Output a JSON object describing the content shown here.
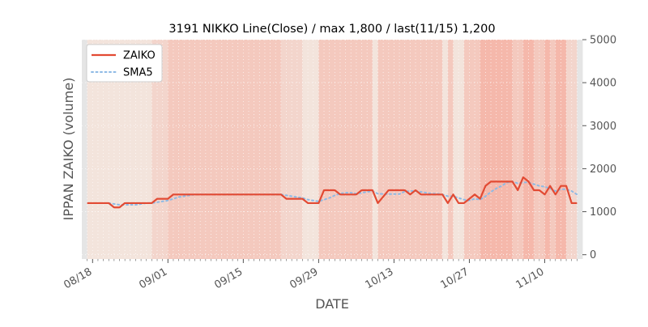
{
  "chart_data": {
    "type": "line",
    "title": "3191 NIKKO Line(Close) / max 1,800 / last(11/15) 1,200",
    "xlabel": "DATE",
    "ylabel": "IPPAN ZAIKO (volume)",
    "ylim": [
      -100,
      5000
    ],
    "yticks": [
      0,
      1000,
      2000,
      3000,
      4000,
      5000
    ],
    "ytick_labels": [
      "0",
      "1000",
      "2000",
      "3000",
      "4000",
      "5000"
    ],
    "y_axis_side": "right",
    "x_range": [
      "2023-08-16",
      "2023-11-17"
    ],
    "xticks": [
      {
        "date": "2023-08-18",
        "label": "08/18"
      },
      {
        "date": "2023-09-01",
        "label": "09/01"
      },
      {
        "date": "2023-09-15",
        "label": "09/15"
      },
      {
        "date": "2023-09-29",
        "label": "09/29"
      },
      {
        "date": "2023-10-13",
        "label": "10/13"
      },
      {
        "date": "2023-10-27",
        "label": "10/27"
      },
      {
        "date": "2023-11-10",
        "label": "11/10"
      }
    ],
    "legend_position": "top-left",
    "grid": true,
    "series": [
      {
        "name": "ZAIKO",
        "style": "solid",
        "color": "#E24A33",
        "points": [
          [
            "2023-08-17",
            1200
          ],
          [
            "2023-08-18",
            1200
          ],
          [
            "2023-08-19",
            1200
          ],
          [
            "2023-08-20",
            1200
          ],
          [
            "2023-08-21",
            1200
          ],
          [
            "2023-08-22",
            1100
          ],
          [
            "2023-08-23",
            1100
          ],
          [
            "2023-08-24",
            1200
          ],
          [
            "2023-08-25",
            1200
          ],
          [
            "2023-08-26",
            1200
          ],
          [
            "2023-08-27",
            1200
          ],
          [
            "2023-08-28",
            1200
          ],
          [
            "2023-08-29",
            1200
          ],
          [
            "2023-08-30",
            1300
          ],
          [
            "2023-08-31",
            1300
          ],
          [
            "2023-09-01",
            1300
          ],
          [
            "2023-09-02",
            1400
          ],
          [
            "2023-09-03",
            1400
          ],
          [
            "2023-09-04",
            1400
          ],
          [
            "2023-09-05",
            1400
          ],
          [
            "2023-09-06",
            1400
          ],
          [
            "2023-09-07",
            1400
          ],
          [
            "2023-09-08",
            1400
          ],
          [
            "2023-09-09",
            1400
          ],
          [
            "2023-09-10",
            1400
          ],
          [
            "2023-09-11",
            1400
          ],
          [
            "2023-09-12",
            1400
          ],
          [
            "2023-09-13",
            1400
          ],
          [
            "2023-09-14",
            1400
          ],
          [
            "2023-09-15",
            1400
          ],
          [
            "2023-09-16",
            1400
          ],
          [
            "2023-09-17",
            1400
          ],
          [
            "2023-09-18",
            1400
          ],
          [
            "2023-09-19",
            1400
          ],
          [
            "2023-09-20",
            1400
          ],
          [
            "2023-09-21",
            1400
          ],
          [
            "2023-09-22",
            1400
          ],
          [
            "2023-09-23",
            1300
          ],
          [
            "2023-09-24",
            1300
          ],
          [
            "2023-09-25",
            1300
          ],
          [
            "2023-09-26",
            1300
          ],
          [
            "2023-09-27",
            1200
          ],
          [
            "2023-09-28",
            1200
          ],
          [
            "2023-09-29",
            1200
          ],
          [
            "2023-09-30",
            1500
          ],
          [
            "2023-10-01",
            1500
          ],
          [
            "2023-10-02",
            1500
          ],
          [
            "2023-10-03",
            1400
          ],
          [
            "2023-10-04",
            1400
          ],
          [
            "2023-10-05",
            1400
          ],
          [
            "2023-10-06",
            1400
          ],
          [
            "2023-10-07",
            1500
          ],
          [
            "2023-10-08",
            1500
          ],
          [
            "2023-10-09",
            1500
          ],
          [
            "2023-10-10",
            1200
          ],
          [
            "2023-10-11",
            1350
          ],
          [
            "2023-10-12",
            1500
          ],
          [
            "2023-10-13",
            1500
          ],
          [
            "2023-10-14",
            1500
          ],
          [
            "2023-10-15",
            1500
          ],
          [
            "2023-10-16",
            1400
          ],
          [
            "2023-10-17",
            1500
          ],
          [
            "2023-10-18",
            1400
          ],
          [
            "2023-10-19",
            1400
          ],
          [
            "2023-10-20",
            1400
          ],
          [
            "2023-10-21",
            1400
          ],
          [
            "2023-10-22",
            1400
          ],
          [
            "2023-10-23",
            1200
          ],
          [
            "2023-10-24",
            1400
          ],
          [
            "2023-10-25",
            1200
          ],
          [
            "2023-10-26",
            1200
          ],
          [
            "2023-10-27",
            1300
          ],
          [
            "2023-10-28",
            1400
          ],
          [
            "2023-10-29",
            1300
          ],
          [
            "2023-10-30",
            1600
          ],
          [
            "2023-10-31",
            1700
          ],
          [
            "2023-11-01",
            1700
          ],
          [
            "2023-11-02",
            1700
          ],
          [
            "2023-11-03",
            1700
          ],
          [
            "2023-11-04",
            1700
          ],
          [
            "2023-11-05",
            1500
          ],
          [
            "2023-11-06",
            1800
          ],
          [
            "2023-11-07",
            1700
          ],
          [
            "2023-11-08",
            1500
          ],
          [
            "2023-11-09",
            1500
          ],
          [
            "2023-11-10",
            1400
          ],
          [
            "2023-11-11",
            1600
          ],
          [
            "2023-11-12",
            1400
          ],
          [
            "2023-11-13",
            1600
          ],
          [
            "2023-11-14",
            1600
          ],
          [
            "2023-11-15",
            1200
          ],
          [
            "2023-11-16",
            1200
          ]
        ]
      },
      {
        "name": "SMA5",
        "style": "dotted",
        "color": "#8EBAE5",
        "points": [
          [
            "2023-08-21",
            1200
          ],
          [
            "2023-08-22",
            1180
          ],
          [
            "2023-08-23",
            1160
          ],
          [
            "2023-08-24",
            1160
          ],
          [
            "2023-08-25",
            1160
          ],
          [
            "2023-08-26",
            1160
          ],
          [
            "2023-08-27",
            1180
          ],
          [
            "2023-08-28",
            1200
          ],
          [
            "2023-08-29",
            1200
          ],
          [
            "2023-08-30",
            1220
          ],
          [
            "2023-08-31",
            1240
          ],
          [
            "2023-09-01",
            1260
          ],
          [
            "2023-09-02",
            1300
          ],
          [
            "2023-09-03",
            1340
          ],
          [
            "2023-09-04",
            1360
          ],
          [
            "2023-09-05",
            1380
          ],
          [
            "2023-09-06",
            1400
          ],
          [
            "2023-09-07",
            1400
          ],
          [
            "2023-09-08",
            1400
          ],
          [
            "2023-09-09",
            1400
          ],
          [
            "2023-09-10",
            1400
          ],
          [
            "2023-09-11",
            1400
          ],
          [
            "2023-09-12",
            1400
          ],
          [
            "2023-09-13",
            1400
          ],
          [
            "2023-09-14",
            1400
          ],
          [
            "2023-09-15",
            1400
          ],
          [
            "2023-09-16",
            1400
          ],
          [
            "2023-09-17",
            1400
          ],
          [
            "2023-09-18",
            1400
          ],
          [
            "2023-09-19",
            1400
          ],
          [
            "2023-09-20",
            1400
          ],
          [
            "2023-09-21",
            1400
          ],
          [
            "2023-09-22",
            1400
          ],
          [
            "2023-09-23",
            1380
          ],
          [
            "2023-09-24",
            1360
          ],
          [
            "2023-09-25",
            1340
          ],
          [
            "2023-09-26",
            1320
          ],
          [
            "2023-09-27",
            1280
          ],
          [
            "2023-09-28",
            1260
          ],
          [
            "2023-09-29",
            1240
          ],
          [
            "2023-09-30",
            1280
          ],
          [
            "2023-10-01",
            1320
          ],
          [
            "2023-10-02",
            1380
          ],
          [
            "2023-10-03",
            1420
          ],
          [
            "2023-10-04",
            1440
          ],
          [
            "2023-10-05",
            1440
          ],
          [
            "2023-10-06",
            1420
          ],
          [
            "2023-10-07",
            1440
          ],
          [
            "2023-10-08",
            1460
          ],
          [
            "2023-10-09",
            1480
          ],
          [
            "2023-10-10",
            1420
          ],
          [
            "2023-10-11",
            1410
          ],
          [
            "2023-10-12",
            1410
          ],
          [
            "2023-10-13",
            1410
          ],
          [
            "2023-10-14",
            1410
          ],
          [
            "2023-10-15",
            1470
          ],
          [
            "2023-10-16",
            1480
          ],
          [
            "2023-10-17",
            1480
          ],
          [
            "2023-10-18",
            1460
          ],
          [
            "2023-10-19",
            1440
          ],
          [
            "2023-10-20",
            1420
          ],
          [
            "2023-10-21",
            1420
          ],
          [
            "2023-10-22",
            1400
          ],
          [
            "2023-10-23",
            1360
          ],
          [
            "2023-10-24",
            1360
          ],
          [
            "2023-10-25",
            1320
          ],
          [
            "2023-10-26",
            1280
          ],
          [
            "2023-10-27",
            1260
          ],
          [
            "2023-10-28",
            1300
          ],
          [
            "2023-10-29",
            1280
          ],
          [
            "2023-10-30",
            1360
          ],
          [
            "2023-10-31",
            1460
          ],
          [
            "2023-11-01",
            1540
          ],
          [
            "2023-11-02",
            1600
          ],
          [
            "2023-11-03",
            1680
          ],
          [
            "2023-11-04",
            1700
          ],
          [
            "2023-11-05",
            1660
          ],
          [
            "2023-11-06",
            1680
          ],
          [
            "2023-11-07",
            1680
          ],
          [
            "2023-11-08",
            1640
          ],
          [
            "2023-11-09",
            1600
          ],
          [
            "2023-11-10",
            1580
          ],
          [
            "2023-11-11",
            1540
          ],
          [
            "2023-11-12",
            1480
          ],
          [
            "2023-11-13",
            1520
          ],
          [
            "2023-11-14",
            1520
          ],
          [
            "2023-11-15",
            1480
          ],
          [
            "2023-11-16",
            1400
          ]
        ]
      }
    ],
    "background_bands": [
      {
        "start": "2023-08-16",
        "end": "2023-08-17",
        "color": "#E5E5E5"
      },
      {
        "start": "2023-08-17",
        "end": "2023-08-29",
        "color": "#F3E4DC"
      },
      {
        "start": "2023-08-29",
        "end": "2023-09-01",
        "color": "#F3D5CC"
      },
      {
        "start": "2023-09-01",
        "end": "2023-09-22",
        "color": "#F4C9BE"
      },
      {
        "start": "2023-09-22",
        "end": "2023-09-26",
        "color": "#F3D5CC"
      },
      {
        "start": "2023-09-26",
        "end": "2023-09-29",
        "color": "#F3E4DC"
      },
      {
        "start": "2023-09-29",
        "end": "2023-10-09",
        "color": "#F4C9BE"
      },
      {
        "start": "2023-10-09",
        "end": "2023-10-10",
        "color": "#F3E4DC"
      },
      {
        "start": "2023-10-10",
        "end": "2023-10-22",
        "color": "#F4C9BE"
      },
      {
        "start": "2023-10-22",
        "end": "2023-10-23",
        "color": "#F3E4DC"
      },
      {
        "start": "2023-10-23",
        "end": "2023-10-24",
        "color": "#F4C9BE"
      },
      {
        "start": "2023-10-24",
        "end": "2023-10-26",
        "color": "#F3E4DC"
      },
      {
        "start": "2023-10-26",
        "end": "2023-10-29",
        "color": "#F4C9BE"
      },
      {
        "start": "2023-10-29",
        "end": "2023-11-04",
        "color": "#F5B8AB"
      },
      {
        "start": "2023-11-04",
        "end": "2023-11-06",
        "color": "#F4C9BE"
      },
      {
        "start": "2023-11-06",
        "end": "2023-11-08",
        "color": "#F5B8AB"
      },
      {
        "start": "2023-11-08",
        "end": "2023-11-10",
        "color": "#F4C9BE"
      },
      {
        "start": "2023-11-10",
        "end": "2023-11-11",
        "color": "#F5B8AB"
      },
      {
        "start": "2023-11-11",
        "end": "2023-11-12",
        "color": "#F4C9BE"
      },
      {
        "start": "2023-11-12",
        "end": "2023-11-14",
        "color": "#F5B8AB"
      },
      {
        "start": "2023-11-14",
        "end": "2023-11-16",
        "color": "#F3D5CC"
      },
      {
        "start": "2023-11-16",
        "end": "2023-11-17",
        "color": "#E5E5E5"
      }
    ]
  }
}
